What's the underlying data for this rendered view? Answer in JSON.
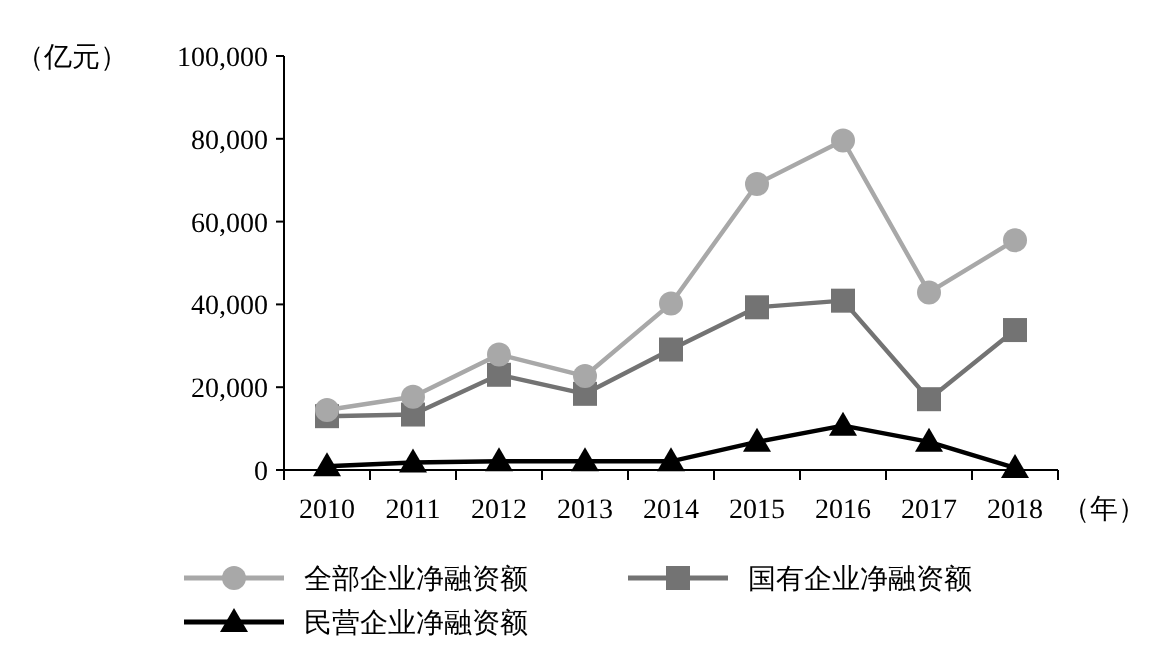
{
  "chart_data": {
    "type": "line",
    "ylabel": "（亿元）",
    "xlabel": "（年）",
    "categories": [
      "2010",
      "2011",
      "2012",
      "2013",
      "2014",
      "2015",
      "2016",
      "2017",
      "2018"
    ],
    "ylim": [
      0,
      100000
    ],
    "yticks": [
      {
        "value": 0,
        "label": "0"
      },
      {
        "value": 20000,
        "label": "20,000"
      },
      {
        "value": 40000,
        "label": "40,000"
      },
      {
        "value": 60000,
        "label": "60,000"
      },
      {
        "value": 80000,
        "label": "80,000"
      },
      {
        "value": 100000,
        "label": "100,000"
      }
    ],
    "grid": false,
    "legend": "bottom",
    "series": [
      {
        "name": "全部企业净融资额",
        "color": "#a8a8a8",
        "marker": "circle",
        "values": [
          14500,
          17700,
          27900,
          22700,
          40200,
          69100,
          79600,
          42900,
          55500
        ]
      },
      {
        "name": "国有企业净融资额",
        "color": "#737373",
        "marker": "square",
        "values": [
          13000,
          13400,
          23000,
          18400,
          29100,
          39300,
          40900,
          17100,
          33800
        ]
      },
      {
        "name": "民营企业净融资额",
        "color": "#000000",
        "marker": "triangle",
        "values": [
          900,
          1800,
          2100,
          2100,
          2100,
          6800,
          10700,
          6800,
          500
        ]
      }
    ]
  }
}
